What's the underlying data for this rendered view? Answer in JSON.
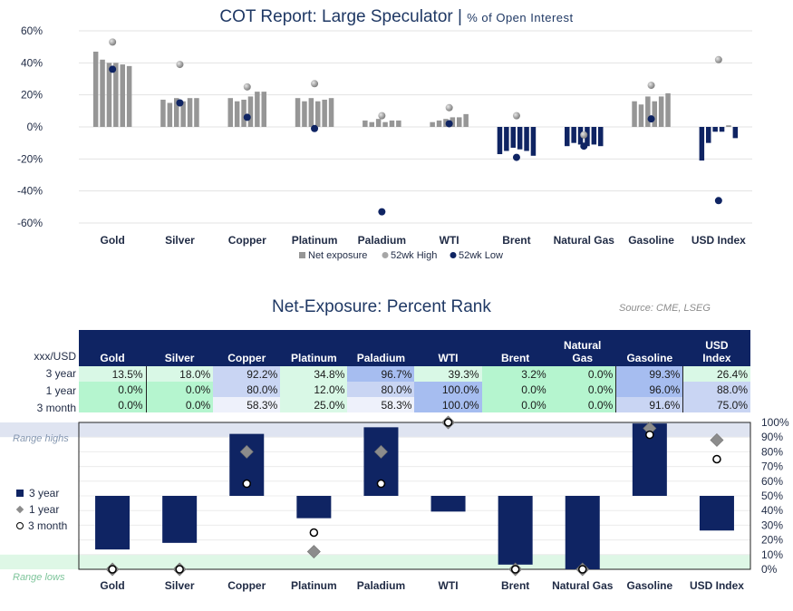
{
  "top": {
    "title": "COT Report: Large Speculator",
    "title_sep": " | ",
    "subtitle": "% of Open Interest",
    "legend": [
      "Net exposure",
      "52wk High",
      "52wk Low"
    ]
  },
  "bottom": {
    "title": "Net-Exposure: Percent Rank",
    "source": "Source: CME, LSEG",
    "corner_label": "xxx/USD",
    "legend": [
      "3 year",
      "1 year",
      "3 month"
    ],
    "range_high_label": "Range highs",
    "range_low_label": "Range lows"
  },
  "table": {
    "columns": [
      "Gold",
      "Silver",
      "Copper",
      "Platinum",
      "Paladium",
      "WTI",
      "Brent",
      "Natural Gas",
      "Gasoline",
      "USD Index"
    ],
    "rows": [
      {
        "label": "3 year",
        "cells": [
          "13.5%",
          "18.0%",
          "92.2%",
          "34.8%",
          "96.7%",
          "39.3%",
          "3.2%",
          "0.0%",
          "99.3%",
          "26.4%"
        ]
      },
      {
        "label": "1 year",
        "cells": [
          "0.0%",
          "0.0%",
          "80.0%",
          "12.0%",
          "80.0%",
          "100.0%",
          "0.0%",
          "0.0%",
          "96.0%",
          "88.0%"
        ]
      },
      {
        "label": "3 month",
        "cells": [
          "0.0%",
          "0.0%",
          "58.3%",
          "25.0%",
          "58.3%",
          "100.0%",
          "0.0%",
          "0.0%",
          "91.6%",
          "75.0%"
        ]
      }
    ]
  },
  "chart_data": [
    {
      "type": "bar",
      "title": "COT Report: Large Speculator | % of Open Interest",
      "categories": [
        "Gold",
        "Silver",
        "Copper",
        "Platinum",
        "Paladium",
        "WTI",
        "Brent",
        "Natural Gas",
        "Gasoline",
        "USD Index"
      ],
      "ylim": [
        -60,
        60
      ],
      "yticks": [
        "60%",
        "40%",
        "20%",
        "0%",
        "-20%",
        "-40%",
        "-60%"
      ],
      "ytick_values": [
        60,
        40,
        20,
        0,
        -20,
        -40,
        -60
      ],
      "grid": true,
      "legend_position": "bottom",
      "series": [
        {
          "name": "Net exposure",
          "color": "#969696",
          "alt_color": "#0f2463",
          "values": [
            [
              47,
              42,
              40,
              40,
              39,
              38
            ],
            [
              17,
              15,
              18,
              16,
              18,
              18
            ],
            [
              18,
              16,
              17,
              19,
              22,
              22
            ],
            [
              18,
              16,
              18,
              16,
              17,
              18
            ],
            [
              4,
              3,
              5,
              3,
              4,
              4
            ],
            [
              3,
              4,
              5,
              6,
              6,
              8
            ],
            [
              -17,
              -15,
              -13,
              -14,
              -15,
              -18
            ],
            [
              -12,
              -10,
              -11,
              -12,
              -11,
              -12
            ],
            [
              16,
              14,
              19,
              16,
              19,
              21
            ],
            [
              -21,
              -10,
              -3,
              -3,
              1,
              -7
            ]
          ]
        },
        {
          "name": "52wk High",
          "color": "#a6a6a6",
          "values": [
            53,
            39,
            25,
            27,
            7,
            12,
            7,
            -5,
            26,
            42
          ]
        },
        {
          "name": "52wk Low",
          "color": "#0f2463",
          "values": [
            36,
            15,
            6,
            -1,
            -53,
            2,
            -19,
            -12,
            5,
            -46
          ]
        }
      ]
    },
    {
      "type": "bar",
      "title": "Net-Exposure: Percent Rank",
      "categories": [
        "Gold",
        "Silver",
        "Copper",
        "Platinum",
        "Paladium",
        "WTI",
        "Brent",
        "Natural Gas",
        "Gasoline",
        "USD Index"
      ],
      "ylim": [
        0,
        100
      ],
      "yticks": [
        "100%",
        "90%",
        "80%",
        "70%",
        "60%",
        "50%",
        "40%",
        "30%",
        "20%",
        "10%",
        "0%"
      ],
      "ytick_values": [
        100,
        90,
        80,
        70,
        60,
        50,
        40,
        30,
        20,
        10,
        0
      ],
      "range_high": [
        90,
        100
      ],
      "range_low": [
        0,
        10
      ],
      "legend_position": "left",
      "series": [
        {
          "name": "3 year",
          "color": "#0f2463",
          "values": [
            13.5,
            18.0,
            92.2,
            34.8,
            96.7,
            39.3,
            3.2,
            0.0,
            99.3,
            26.4
          ]
        },
        {
          "name": "1 year",
          "color": "#8c8c8c",
          "values": [
            0.0,
            0.0,
            80.0,
            12.0,
            80.0,
            100.0,
            0.0,
            0.0,
            96.0,
            88.0
          ]
        },
        {
          "name": "3 month",
          "color": "#ffffff",
          "values": [
            0.0,
            0.0,
            58.3,
            25.0,
            58.3,
            100.0,
            0.0,
            0.0,
            91.6,
            75.0
          ]
        }
      ]
    }
  ]
}
